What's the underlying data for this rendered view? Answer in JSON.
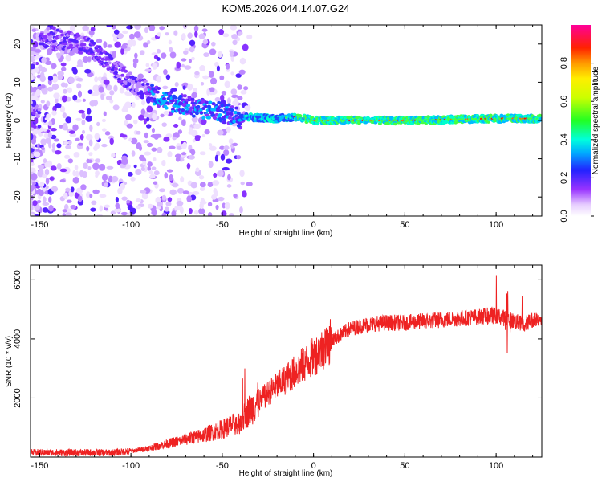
{
  "title": "KOM5.2026.044.14.07.G24",
  "chart_data": [
    {
      "type": "heatmap",
      "xlabel": "Height of straight line (km)",
      "ylabel": "Frequency (Hz)",
      "xlim": [
        -155,
        125
      ],
      "ylim": [
        -25,
        25
      ],
      "xticks": [
        -150,
        -100,
        -50,
        0,
        50,
        100
      ],
      "yticks": [
        -20,
        -10,
        0,
        10,
        20
      ],
      "colorbar": {
        "label": "Normalized spectral amplitude",
        "range": [
          0.0,
          1.0
        ],
        "ticks": [
          "0.0",
          "0.2",
          "0.4",
          "0.6",
          "0.8"
        ],
        "colormap": "rainbow (white-purple-blue-cyan-green-yellow-orange-red-magenta)"
      },
      "ridge": [
        {
          "x": -150,
          "f": 22
        },
        {
          "x": -125,
          "f": 20
        },
        {
          "x": -100,
          "f": 10
        },
        {
          "x": -80,
          "f": 5
        },
        {
          "x": -60,
          "f": 3
        },
        {
          "x": -40,
          "f": 1
        },
        {
          "x": -20,
          "f": 0.5
        },
        {
          "x": -10,
          "f": 1
        },
        {
          "x": 0,
          "f": 0
        },
        {
          "x": 50,
          "f": 0
        },
        {
          "x": 100,
          "f": 0.5
        },
        {
          "x": 125,
          "f": 0.5
        }
      ]
    },
    {
      "type": "line",
      "xlabel": "Height of straight line (km)",
      "ylabel": "SNR (10 * v/v)",
      "xlim": [
        -155,
        125
      ],
      "ylim": [
        0,
        6500
      ],
      "xticks": [
        -150,
        -100,
        -50,
        0,
        50,
        100
      ],
      "yticks": [
        2000,
        4000,
        6000
      ],
      "color": "#ee2222",
      "series": [
        {
          "name": "SNR",
          "x": [
            -155,
            -130,
            -110,
            -100,
            -90,
            -80,
            -70,
            -60,
            -50,
            -40,
            -35,
            -30,
            -20,
            -10,
            0,
            10,
            20,
            30,
            40,
            50,
            60,
            70,
            80,
            90,
            100,
            105,
            110,
            115,
            120,
            125
          ],
          "y": [
            150,
            150,
            150,
            200,
            300,
            450,
            600,
            750,
            950,
            1200,
            1600,
            1900,
            2400,
            2900,
            3400,
            3950,
            4350,
            4500,
            4550,
            4550,
            4600,
            4650,
            4700,
            4750,
            4800,
            4700,
            4600,
            4500,
            4650,
            4750
          ]
        }
      ]
    }
  ]
}
